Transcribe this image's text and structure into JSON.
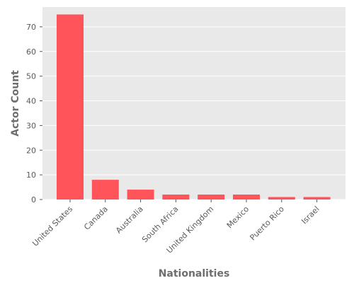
{
  "chart_data": {
    "type": "bar",
    "title": "",
    "xlabel": "Nationalities",
    "ylabel": "Actor Count",
    "categories": [
      "United States",
      "Canada",
      "Australia",
      "South Africa",
      "United Kingdom",
      "Mexico",
      "Puerto Rico",
      "Israel"
    ],
    "values": [
      75,
      8,
      4,
      2,
      2,
      2,
      1,
      1
    ],
    "ylim": [
      0,
      78
    ],
    "yticks": [
      0,
      10,
      20,
      30,
      40,
      50,
      60,
      70
    ],
    "grid": true,
    "legend": "none",
    "colors": {
      "bar": "#ff5459",
      "plot_background": "#e9e9e9",
      "grid": "#ffffff",
      "tick_text": "#5a5a5a",
      "axis_title": "#6e6e6e"
    }
  }
}
